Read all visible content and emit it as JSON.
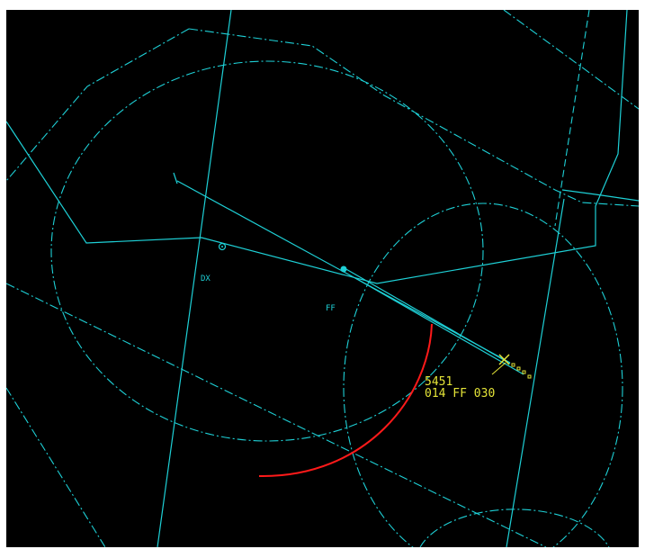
{
  "scope": {
    "background_color": "#000000",
    "map_color": "#1ed0d6",
    "track_color": "#e4e438",
    "range_ring_color": "#ff1a1a"
  },
  "fixes": {
    "dx_label": "DX",
    "ff_label": "FF"
  },
  "track": {
    "squawk": "5451",
    "data_line": "014 FF 030"
  }
}
